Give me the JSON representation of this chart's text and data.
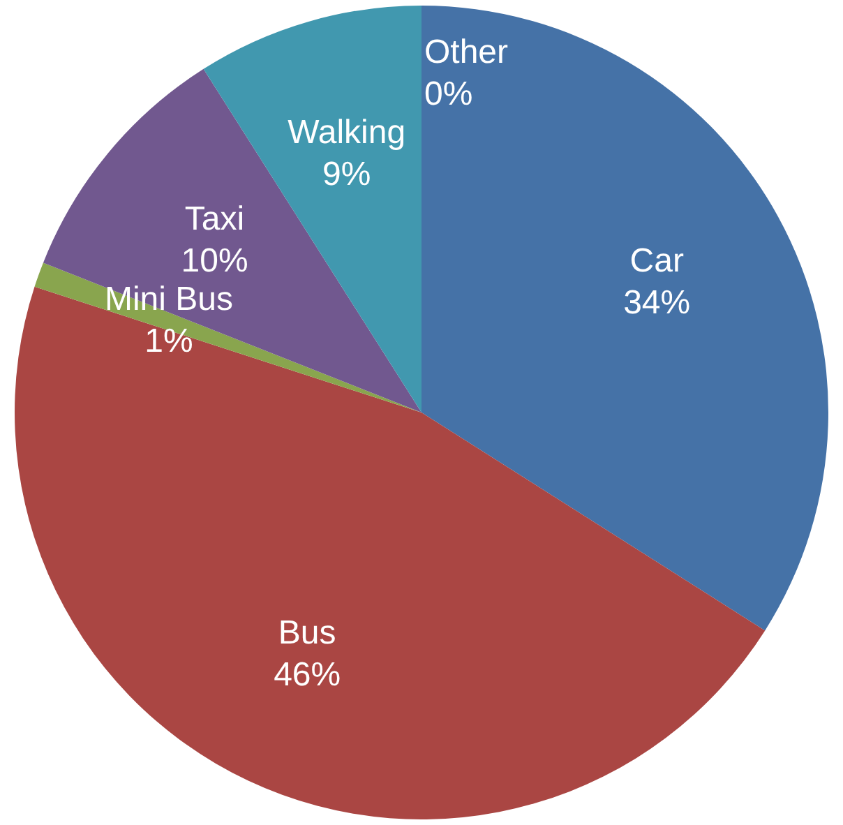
{
  "chart_data": {
    "type": "pie",
    "categories": [
      "Car",
      "Bus",
      "Mini Bus",
      "Taxi",
      "Walking",
      "Other"
    ],
    "values": [
      34,
      46,
      1,
      10,
      9,
      0
    ],
    "colors": [
      "#4572a7",
      "#aa4643",
      "#89a54e",
      "#71588f",
      "#4198af",
      "#db843d"
    ],
    "value_labels": [
      "34%",
      "46%",
      "1%",
      "10%",
      "9%",
      "0%"
    ],
    "legend": false
  }
}
